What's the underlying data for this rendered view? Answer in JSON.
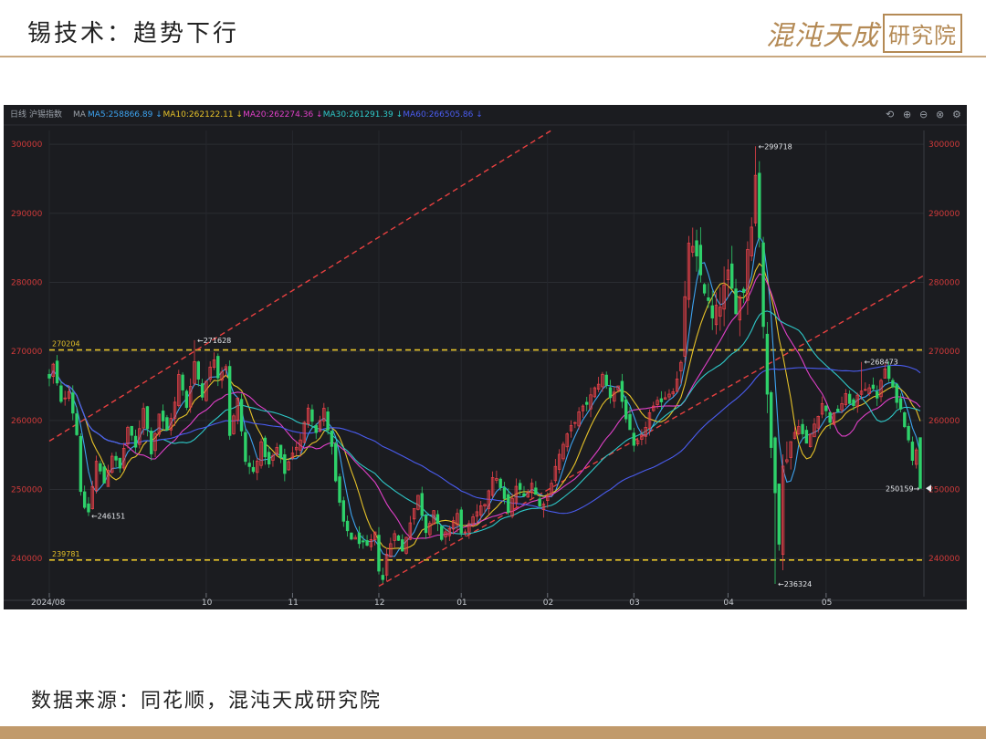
{
  "slide": {
    "title": "锡技术：趋势下行",
    "brand_text": "混沌天成",
    "brand_seal": "研究院",
    "source": "数据来源：同花顺，混沌天成研究院"
  },
  "toolbar": {
    "period": "日线",
    "instrument": "沪锡指数",
    "ma_label": "MA",
    "ma_items": [
      {
        "text": "MA5:258866.89",
        "color": "#3da3f0"
      },
      {
        "text": "MA10:262122.11",
        "color": "#e6c229"
      },
      {
        "text": "MA20:262274.36",
        "color": "#e040c8"
      },
      {
        "text": "MA30:261291.39",
        "color": "#2ec9c9"
      },
      {
        "text": "MA60:266505.86",
        "color": "#4a5cf0"
      }
    ],
    "icons": [
      "undo-icon",
      "zoom-in-icon",
      "zoom-out-icon",
      "close-icon",
      "settings-icon"
    ]
  },
  "colors": {
    "up": "#e8424a",
    "down": "#2ed16a",
    "ma5": "#3da3f0",
    "ma10": "#e6c229",
    "ma20": "#e040c8",
    "ma30": "#2ec9c9",
    "ma60": "#4a5cf0",
    "trend": "#e84040",
    "level": "#e6c229",
    "axis_text": "#d03a3a"
  },
  "chart_data": {
    "type": "candlestick",
    "ylim": [
      235000,
      302000
    ],
    "y_ticks": [
      "300000",
      "290000",
      "280000",
      "270000",
      "260000",
      "250000",
      "240000"
    ],
    "x_ticks": [
      "2024/08",
      "10",
      "11",
      "12",
      "01",
      "02",
      "03",
      "04",
      "05"
    ],
    "horizontal_levels": [
      {
        "label": "270204",
        "value": 270204
      },
      {
        "label": "239781",
        "value": 239781
      }
    ],
    "trend_channel": [
      {
        "from": [
          "2024/08",
          257000
        ],
        "to": [
          "02",
          302000
        ]
      },
      {
        "from": [
          "12",
          236000
        ],
        "to": [
          "05-end",
          281000
        ]
      }
    ],
    "annotations": [
      {
        "label": "271628",
        "date": "2024-09-25",
        "value": 271628
      },
      {
        "label": "246151",
        "date": "2024-08-15",
        "value": 246151
      },
      {
        "label": "299718",
        "date": "2025-04-03",
        "value": 299718
      },
      {
        "label": "236324",
        "date": "2025-04-09",
        "value": 236324
      },
      {
        "label": "268473",
        "date": "2025-05-09",
        "value": 268473
      },
      {
        "label": "250159",
        "date": "2025-05-30",
        "value": 250159
      }
    ],
    "month_anchors": [
      {
        "label": "2024/08",
        "index": 0
      },
      {
        "label": "10",
        "index": 40
      },
      {
        "label": "11",
        "index": 62
      },
      {
        "label": "12",
        "index": 84
      },
      {
        "label": "01",
        "index": 105
      },
      {
        "label": "02",
        "index": 127
      },
      {
        "label": "03",
        "index": 149
      },
      {
        "label": "04",
        "index": 173
      },
      {
        "label": "05",
        "index": 198
      },
      {
        "label": "05-end",
        "index": 222
      }
    ],
    "close_path": [
      [
        0,
        266000
      ],
      [
        1,
        268000
      ],
      [
        3,
        262500
      ],
      [
        5,
        264500
      ],
      [
        7,
        258000
      ],
      [
        8,
        250000
      ],
      [
        9,
        247000
      ],
      [
        10,
        246800
      ],
      [
        12,
        254000
      ],
      [
        14,
        251000
      ],
      [
        16,
        255000
      ],
      [
        18,
        253000
      ],
      [
        20,
        259000
      ],
      [
        22,
        256000
      ],
      [
        24,
        262000
      ],
      [
        26,
        255500
      ],
      [
        28,
        261000
      ],
      [
        30,
        258500
      ],
      [
        32,
        262500
      ],
      [
        33,
        266500
      ],
      [
        35,
        262000
      ],
      [
        37,
        268500
      ],
      [
        39,
        263500
      ],
      [
        40,
        266000
      ],
      [
        42,
        269000
      ],
      [
        43,
        266500
      ],
      [
        45,
        268000
      ],
      [
        46,
        258000
      ],
      [
        48,
        263000
      ],
      [
        50,
        254000
      ],
      [
        52,
        252500
      ],
      [
        54,
        256500
      ],
      [
        56,
        253500
      ],
      [
        58,
        256000
      ],
      [
        60,
        252500
      ],
      [
        62,
        255500
      ],
      [
        64,
        257000
      ],
      [
        66,
        262000
      ],
      [
        68,
        258500
      ],
      [
        70,
        261500
      ],
      [
        72,
        256000
      ],
      [
        73,
        251000
      ],
      [
        75,
        245000
      ],
      [
        77,
        243000
      ],
      [
        79,
        242500
      ],
      [
        81,
        241500
      ],
      [
        83,
        243500
      ],
      [
        84,
        238500
      ],
      [
        85,
        237000
      ],
      [
        86,
        240500
      ],
      [
        88,
        244000
      ],
      [
        90,
        241000
      ],
      [
        92,
        245500
      ],
      [
        94,
        249000
      ],
      [
        96,
        244000
      ],
      [
        98,
        247000
      ],
      [
        100,
        242500
      ],
      [
        102,
        244500
      ],
      [
        104,
        246500
      ],
      [
        105,
        243500
      ],
      [
        107,
        244800
      ],
      [
        109,
        246500
      ],
      [
        111,
        248000
      ],
      [
        113,
        252000
      ],
      [
        115,
        250500
      ],
      [
        117,
        246500
      ],
      [
        119,
        250500
      ],
      [
        121,
        249000
      ],
      [
        123,
        251000
      ],
      [
        125,
        247500
      ],
      [
        127,
        249000
      ],
      [
        129,
        253500
      ],
      [
        131,
        256500
      ],
      [
        133,
        259000
      ],
      [
        135,
        261000
      ],
      [
        137,
        262500
      ],
      [
        139,
        264500
      ],
      [
        141,
        266500
      ],
      [
        143,
        263500
      ],
      [
        145,
        265000
      ],
      [
        147,
        260500
      ],
      [
        149,
        256000
      ],
      [
        151,
        257500
      ],
      [
        153,
        261000
      ],
      [
        155,
        262500
      ],
      [
        157,
        263500
      ],
      [
        159,
        264500
      ],
      [
        161,
        268000
      ],
      [
        163,
        286000
      ],
      [
        165,
        283000
      ],
      [
        167,
        279000
      ],
      [
        169,
        274500
      ],
      [
        171,
        277000
      ],
      [
        173,
        281000
      ],
      [
        175,
        276500
      ],
      [
        177,
        279000
      ],
      [
        178,
        285000
      ],
      [
        179,
        289000
      ],
      [
        180,
        295500
      ],
      [
        181,
        287000
      ],
      [
        182,
        274000
      ],
      [
        183,
        263000
      ],
      [
        184,
        256000
      ],
      [
        185,
        250500
      ],
      [
        186,
        243000
      ],
      [
        187,
        253000
      ],
      [
        189,
        257000
      ],
      [
        191,
        259500
      ],
      [
        193,
        256500
      ],
      [
        195,
        259500
      ],
      [
        197,
        262500
      ],
      [
        199,
        260000
      ],
      [
        201,
        261500
      ],
      [
        203,
        263500
      ],
      [
        205,
        262000
      ],
      [
        207,
        264500
      ],
      [
        209,
        265000
      ],
      [
        211,
        263500
      ],
      [
        213,
        267500
      ],
      [
        215,
        264500
      ],
      [
        217,
        261500
      ],
      [
        219,
        257500
      ],
      [
        220,
        254000
      ],
      [
        221,
        256000
      ],
      [
        222,
        250200
      ]
    ],
    "ma_series": [
      {
        "key": "ma5",
        "name": "MA5",
        "window": 5
      },
      {
        "key": "ma10",
        "name": "MA10",
        "window": 10
      },
      {
        "key": "ma20",
        "name": "MA20",
        "window": 20
      },
      {
        "key": "ma30",
        "name": "MA30",
        "window": 30
      },
      {
        "key": "ma60",
        "name": "MA60",
        "window": 60
      }
    ],
    "last_price_marker": 250159
  }
}
